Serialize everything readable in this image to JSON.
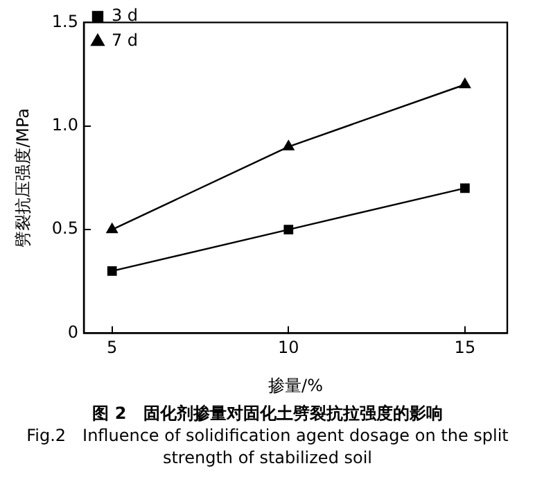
{
  "chart_data": {
    "type": "line",
    "xlabel": "掺量/%",
    "ylabel": "劈裂抗压强度/MPa",
    "x": [
      5,
      10,
      15
    ],
    "series": [
      {
        "name": "3 d",
        "color": "#000000",
        "marker": "square",
        "values": [
          0.3,
          0.5,
          0.7
        ]
      },
      {
        "name": "7 d",
        "color": "#000000",
        "marker": "triangle",
        "values": [
          0.5,
          0.9,
          1.2
        ]
      }
    ],
    "xlim": [
      4.2,
      16.2
    ],
    "xticks": [
      5,
      10,
      15
    ],
    "ylim": [
      0,
      1.5
    ],
    "yticks": [
      0,
      0.5,
      {
        "value": 1,
        "label": "1.0"
      },
      1.5
    ],
    "legend": "top left",
    "grid": false,
    "line_style": "solid",
    "annotations": [
      "图 2　固化剂掺量对固化土劈裂抗拉强度的影响",
      "Fig.2　Influence of solidification agent dosage on the split strength of stabilized soil"
    ]
  }
}
